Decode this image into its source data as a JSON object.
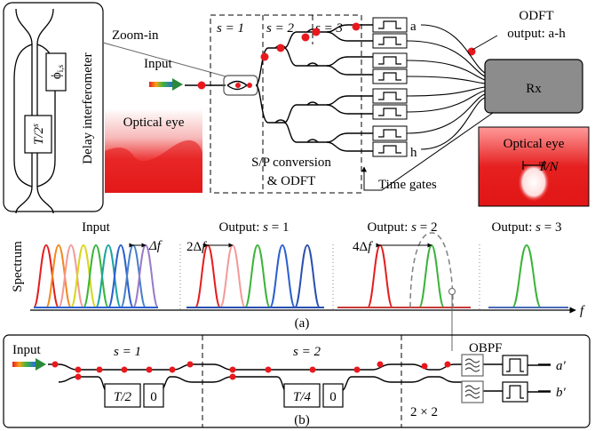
{
  "top": {
    "delay_interferometer": "Delay interferometer",
    "delay_label": "T/2",
    "delay_label_sup": "s",
    "phase_label": "ϕ",
    "phase_sub": "i,s",
    "zoom_in": "Zoom-in",
    "input": "Input",
    "optical_eye_left": "Optical eye",
    "stage1": "s = 1",
    "stage2": "s = 2",
    "stage3": "s = 3",
    "sp_conversion": "S/P conversion",
    "odft": "& ODFT",
    "time_gates": "Time gates",
    "odft_output_1": "ODFT",
    "odft_output_2": "output: a-h",
    "rx": "Rx",
    "optical_eye_right": "Optical eye",
    "tn_label": "T/N",
    "gate_a": "a",
    "gate_h": "h"
  },
  "middle": {
    "input": "Input",
    "out1": "Output: s = 1",
    "out2": "Output: s = 2",
    "out3": "Output: s = 3",
    "spectrum": "Spectrum",
    "df": "Δf",
    "df2": "2Δf",
    "df4": "4Δf",
    "f_axis": "f",
    "caption_a": "(a)"
  },
  "bottom": {
    "input": "Input",
    "stage1": "s = 1",
    "stage2": "s = 2",
    "obpf": "OBPF",
    "t2": "T/2",
    "zero1": "0",
    "t4": "T/4",
    "zero2": "0",
    "two_by_two": "2 × 2",
    "out_a": "a′",
    "out_b": "b′",
    "caption_b": "(b)"
  },
  "colors": {
    "red_dot": "#e8191e",
    "dashed_gray": "#808080",
    "rx_fill": "#8c8c8c"
  }
}
